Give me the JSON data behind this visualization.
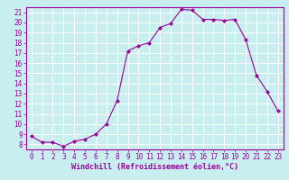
{
  "x": [
    0,
    1,
    2,
    3,
    4,
    5,
    6,
    7,
    8,
    9,
    10,
    11,
    12,
    13,
    14,
    15,
    16,
    17,
    18,
    19,
    20,
    21,
    22,
    23
  ],
  "y": [
    8.8,
    8.2,
    8.2,
    7.8,
    8.3,
    8.5,
    9.0,
    10.0,
    12.3,
    17.2,
    17.7,
    18.0,
    19.5,
    19.9,
    21.3,
    21.2,
    20.3,
    20.3,
    20.2,
    20.3,
    18.3,
    14.8,
    13.2,
    11.3
  ],
  "line_color": "#990099",
  "marker": "D",
  "marker_size": 2.0,
  "xlabel": "Windchill (Refroidissement éolien,°C)",
  "yticks": [
    8,
    9,
    10,
    11,
    12,
    13,
    14,
    15,
    16,
    17,
    18,
    19,
    20,
    21
  ],
  "xticks": [
    0,
    1,
    2,
    3,
    4,
    5,
    6,
    7,
    8,
    9,
    10,
    11,
    12,
    13,
    14,
    15,
    16,
    17,
    18,
    19,
    20,
    21,
    22,
    23
  ],
  "xlim": [
    -0.5,
    23.5
  ],
  "ylim": [
    7.5,
    21.5
  ],
  "bg_color": "#c8eef0",
  "grid_color": "#aadddd",
  "line_color_spine": "#990099",
  "tick_color": "#990099",
  "label_color": "#990099",
  "tick_fontsize": 5.5,
  "xlabel_fontsize": 6.0
}
